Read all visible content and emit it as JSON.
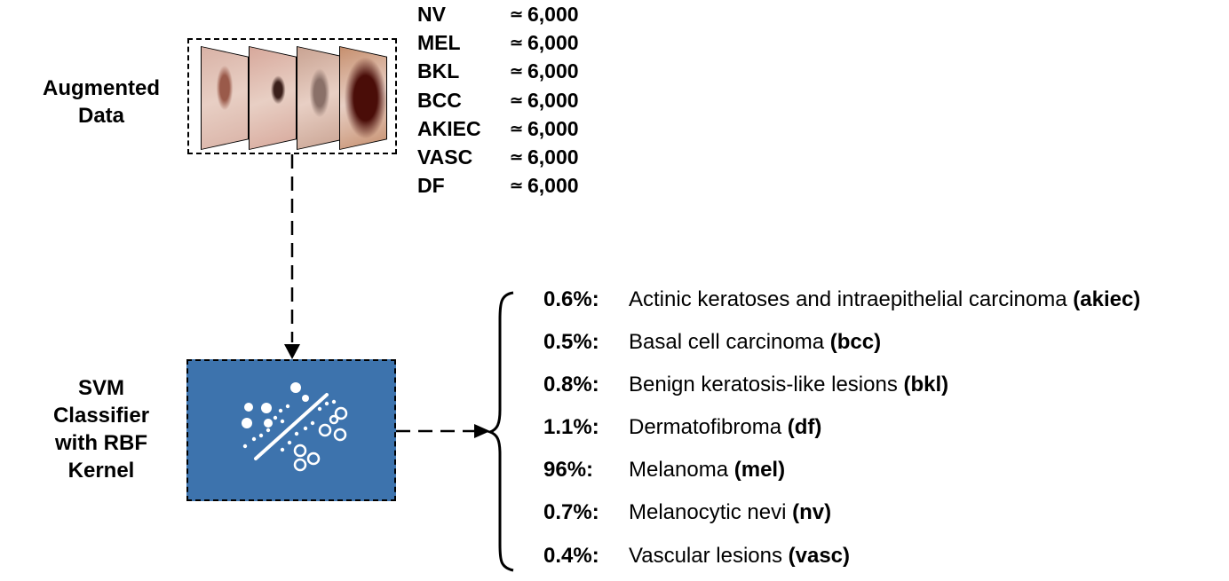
{
  "augmented": {
    "label_line1": "Augmented",
    "label_line2": "Data",
    "thumbnails": [
      {
        "name": "lesion-image-1",
        "skin": "#d9b2a6",
        "lesion": "#9a5a4a"
      },
      {
        "name": "lesion-image-2",
        "skin": "#d7a89b",
        "lesion": "#3b1f1a"
      },
      {
        "name": "lesion-image-3",
        "skin": "#c9a392",
        "lesion": "#8a7068"
      },
      {
        "name": "lesion-image-4",
        "skin": "#c68f6e",
        "lesion": "#4a0d08"
      }
    ]
  },
  "counts": [
    {
      "cls": "NV",
      "approx": "≃",
      "value": "6,000"
    },
    {
      "cls": "MEL",
      "approx": "≃",
      "value": "6,000"
    },
    {
      "cls": "BKL",
      "approx": "≃",
      "value": "6,000"
    },
    {
      "cls": "BCC",
      "approx": "≃",
      "value": "6,000"
    },
    {
      "cls": "AKIEC",
      "approx": "≃",
      "value": "6,000"
    },
    {
      "cls": "VASC",
      "approx": "≃",
      "value": "6,000"
    },
    {
      "cls": "DF",
      "approx": "≃",
      "value": "6,000"
    }
  ],
  "classifier": {
    "line1": "SVM",
    "line2": "Classifier",
    "line3": "with RBF",
    "line4": "Kernel",
    "box_color": "#3d73ad",
    "icon": "svm-separation-icon"
  },
  "results": [
    {
      "pct": "0.6%:",
      "name": "Actinic keratoses and intraepithelial carcinoma ",
      "abbr": "(akiec)"
    },
    {
      "pct": "0.5%:",
      "name": "Basal cell carcinoma ",
      "abbr": "(bcc)"
    },
    {
      "pct": "0.8%:",
      "name": "Benign keratosis-like lesions ",
      "abbr": "(bkl)"
    },
    {
      "pct": "1.1%:",
      "name": "Dermatofibroma ",
      "abbr": "(df)"
    },
    {
      "pct": "96%:",
      "name": "Melanoma ",
      "abbr": "(mel)"
    },
    {
      "pct": "0.7%:",
      "name": "Melanocytic nevi ",
      "abbr": "(nv)"
    },
    {
      "pct": "0.4%:",
      "name": "Vascular lesions ",
      "abbr": "(vasc)"
    }
  ]
}
